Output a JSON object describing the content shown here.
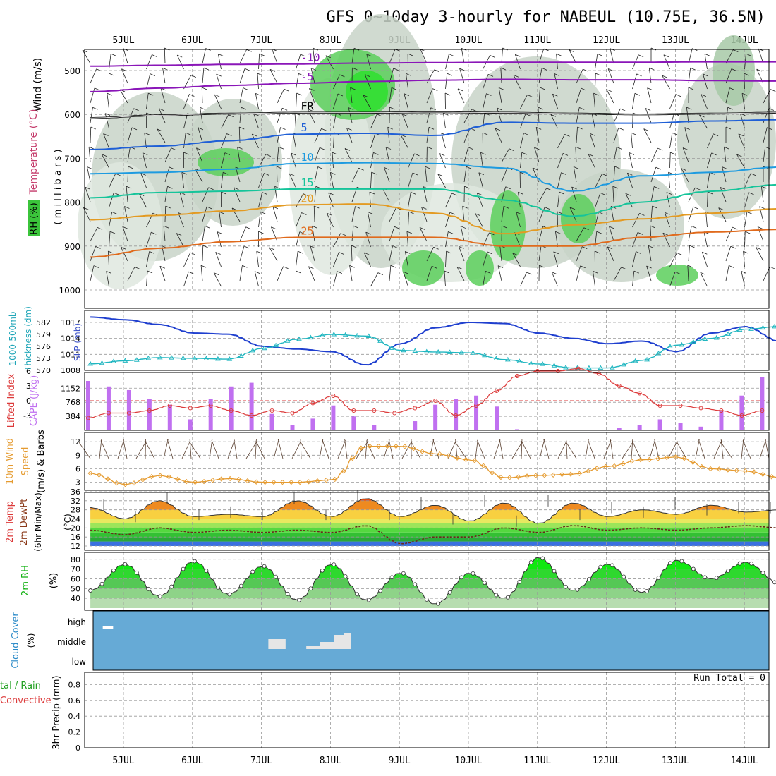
{
  "page": {
    "title": "GFS 0~10day 3-hourly for NABEUL (10.75E, 36.5N)",
    "run_total": "Run Total = 0"
  },
  "dates": [
    "5JUL",
    "6JUL",
    "7JUL",
    "8JUL",
    "9JUL",
    "10JUL",
    "11JUL",
    "12JUL",
    "13JUL",
    "14JUL"
  ],
  "panel_labels": {
    "p1_wind": "Wind (m/s)",
    "p1_temp": "Temperature (°C)",
    "p1_rh": "RH (%)",
    "p1_mb": "( m i l l i b a r s )",
    "p2_slp": "SLP (mb)",
    "p2_thick": "Thickness (dm)",
    "p2_thick2": "1000-500mb",
    "p3_li": "Lifted Index",
    "p3_cape": "CAPE (J/kg)",
    "p4_a": "10m Wind",
    "p4_b": "Speed",
    "p4_c": "(m/s) & Barbs",
    "p5_a": "2m Temp",
    "p5_b": "2m DewPt",
    "p5_c": "(6hr Min/Max)",
    "p5_d": "(°C)",
    "p6_a": "2m RH",
    "p6_b": "(%)",
    "p7_a": "Cloud Cover",
    "p7_b": "(%)",
    "p8_a": "tal / Rain",
    "p8_b": "Convective",
    "p8_c": "3hr Precip (mm)"
  },
  "chart_data": [
    {
      "type": "heatmap",
      "name": "Upper air cross section",
      "y_ticks": [
        500,
        600,
        700,
        800,
        900,
        1000
      ],
      "temperature_contours": [
        {
          "label": "-10",
          "values_mb": [
            490,
            488,
            486,
            485,
            483,
            482,
            481,
            481,
            481,
            480,
            480
          ]
        },
        {
          "label": "-5",
          "values_mb": [
            548,
            540,
            534,
            529,
            525,
            522,
            520,
            521,
            521,
            523,
            524
          ]
        },
        {
          "label": "FR",
          "values_mb": [
            608,
            602,
            598,
            596,
            596,
            595,
            596,
            598,
            600,
            598,
            596
          ]
        },
        {
          "label": "5",
          "values_mb": [
            680,
            672,
            660,
            645,
            643,
            648,
            618,
            620,
            620,
            615,
            612
          ]
        },
        {
          "label": "10",
          "values_mb": [
            735,
            732,
            725,
            712,
            710,
            712,
            722,
            775,
            740,
            732,
            720
          ]
        },
        {
          "label": "15",
          "values_mb": [
            790,
            778,
            775,
            770,
            770,
            770,
            795,
            832,
            800,
            775,
            760
          ]
        },
        {
          "label": "20",
          "values_mb": [
            840,
            830,
            820,
            806,
            804,
            825,
            872,
            852,
            838,
            825,
            815
          ]
        },
        {
          "label": "25",
          "values_mb": [
            925,
            905,
            890,
            880,
            880,
            880,
            900,
            900,
            880,
            868,
            862
          ]
        }
      ]
    },
    {
      "type": "line",
      "name": "SLP and Thickness",
      "series": [
        {
          "name": "SLP (mb)",
          "x": [
            0,
            0.5,
            1,
            1.5,
            2,
            2.5,
            3,
            3.5,
            4,
            4.5,
            5,
            5.5,
            6,
            6.5,
            7,
            7.5,
            8,
            8.5,
            9,
            9.5,
            10
          ],
          "y": [
            1018,
            1017.5,
            1016.6,
            1015,
            1014.8,
            1012.5,
            1012,
            1011.5,
            1009,
            1013,
            1016,
            1017,
            1016.8,
            1015,
            1014,
            1013,
            1013.5,
            1011.5,
            1015,
            1016.2,
            1013.4
          ]
        },
        {
          "name": "Thickness (dm)",
          "x": [
            0,
            0.5,
            1,
            1.5,
            2,
            2.5,
            3,
            3.5,
            4,
            4.5,
            5,
            5.5,
            6,
            6.5,
            7,
            7.5,
            8,
            8.5,
            9,
            9.5,
            10
          ],
          "y": [
            571.6,
            572.4,
            573.2,
            573,
            572.8,
            575.5,
            577.8,
            579,
            578.6,
            575,
            574.6,
            574.4,
            572.7,
            571.6,
            570.6,
            570.6,
            572.5,
            576.3,
            578,
            580.3,
            581
          ]
        }
      ],
      "ylim_slp": [
        1008,
        1019
      ],
      "slp_ticks": [
        1008,
        1011,
        1014,
        1017
      ],
      "thick_ticks": [
        570,
        573,
        576,
        579,
        582
      ]
    },
    {
      "type": "bar",
      "name": "CAPE and Lifted Index",
      "cape_x": [
        0,
        0.3,
        0.6,
        0.9,
        1.2,
        1.5,
        1.8,
        2.1,
        2.4,
        2.7,
        3,
        3.3,
        3.6,
        3.9,
        4.2,
        4.5,
        4.8,
        5.1,
        5.4,
        5.7,
        6,
        6.3,
        6.6,
        6.9,
        7.2,
        7.5,
        7.8,
        8.1,
        8.4,
        8.7,
        9,
        9.3,
        9.6,
        9.9
      ],
      "cape_y": [
        1350,
        1200,
        1100,
        850,
        700,
        300,
        850,
        1200,
        1300,
        450,
        150,
        320,
        680,
        380,
        150,
        0,
        250,
        700,
        850,
        950,
        650,
        30,
        0,
        0,
        0,
        0,
        60,
        150,
        300,
        200,
        100,
        550,
        950,
        1450
      ],
      "li_y": [
        -3.5,
        -2.5,
        -2.5,
        -2,
        -1,
        -1.5,
        -1,
        -2,
        -3,
        -2,
        -2.5,
        -0.5,
        1,
        -2,
        -2,
        -2.5,
        -1.5,
        0,
        -3,
        -1,
        2,
        5,
        6,
        6,
        6.5,
        5.5,
        3,
        1.5,
        -1,
        -1,
        -1.5,
        -2,
        -3,
        -2
      ],
      "cape_ticks": [
        384,
        768,
        1152
      ],
      "li_ticks": [
        -3,
        0,
        3,
        6
      ]
    },
    {
      "type": "line",
      "name": "10m Wind Speed",
      "x": [
        0,
        0.5,
        1,
        1.5,
        2,
        2.5,
        3,
        3.5,
        4,
        4.5,
        5,
        5.5,
        6,
        6.5,
        7,
        7.5,
        8,
        8.5,
        9,
        9.5,
        10
      ],
      "y": [
        5,
        2.5,
        4.5,
        3,
        3.8,
        3,
        3,
        3.5,
        11,
        11,
        9.3,
        8,
        4,
        4.5,
        4.8,
        6.5,
        8,
        8.6,
        6,
        5.5,
        4
      ],
      "ticks": [
        3,
        6,
        9,
        12
      ]
    },
    {
      "type": "area",
      "name": "2m Temp and DewPt",
      "x": [
        0,
        0.5,
        1,
        1.5,
        2,
        2.5,
        3,
        3.5,
        4,
        4.5,
        5,
        5.5,
        6,
        6.5,
        7,
        7.5,
        8,
        8.5,
        9,
        9.5,
        10
      ],
      "temp": [
        29,
        24,
        32,
        25,
        26,
        25,
        32,
        25,
        33,
        25,
        30,
        23,
        31,
        22,
        31,
        25,
        28,
        26,
        30,
        27,
        28
      ],
      "dewpt": [
        19,
        17,
        20,
        18,
        19,
        18,
        19,
        18,
        21,
        13,
        16,
        16,
        20,
        18,
        21,
        19,
        20,
        19,
        20,
        21,
        20
      ],
      "ticks": [
        12,
        16,
        20,
        24,
        28,
        32,
        36
      ]
    },
    {
      "type": "area",
      "name": "2m RH",
      "x": [
        0,
        0.5,
        1,
        1.5,
        2,
        2.5,
        3,
        3.5,
        4,
        4.5,
        5,
        5.5,
        6,
        6.5,
        7,
        7.5,
        8,
        8.5,
        9,
        9.5,
        10
      ],
      "y": [
        48,
        75,
        42,
        78,
        44,
        73,
        38,
        75,
        38,
        66,
        34,
        66,
        40,
        82,
        48,
        75,
        46,
        79,
        60,
        77,
        55
      ],
      "ticks": [
        40,
        50,
        60,
        70,
        80
      ]
    },
    {
      "type": "bar",
      "name": "Cloud Cover",
      "levels": [
        "high",
        "middle",
        "low"
      ],
      "high": [
        [
          0.2,
          0.35,
          0.15
        ]
      ],
      "middle": [
        [
          2.6,
          2.85,
          0.35
        ],
        [
          3.15,
          3.35,
          0.1
        ],
        [
          3.35,
          3.55,
          0.25
        ],
        [
          3.55,
          3.7,
          0.5
        ],
        [
          3.7,
          3.8,
          0.55
        ]
      ],
      "low": []
    },
    {
      "type": "line",
      "name": "3hr Precip",
      "x": [
        0,
        10
      ],
      "y": [
        0,
        0
      ],
      "ticks": [
        0,
        0.2,
        0.4,
        0.6,
        0.8
      ]
    }
  ],
  "colors": {
    "slp": "#1f3fcf",
    "thickness": "#20b6c0",
    "cape": "#c070f0",
    "li": "#dc3a3a",
    "wind": "#e59b30",
    "temp_orange": "#ee7a18",
    "rh_green": "#00d000",
    "cloud_blue": "#66aad6"
  }
}
